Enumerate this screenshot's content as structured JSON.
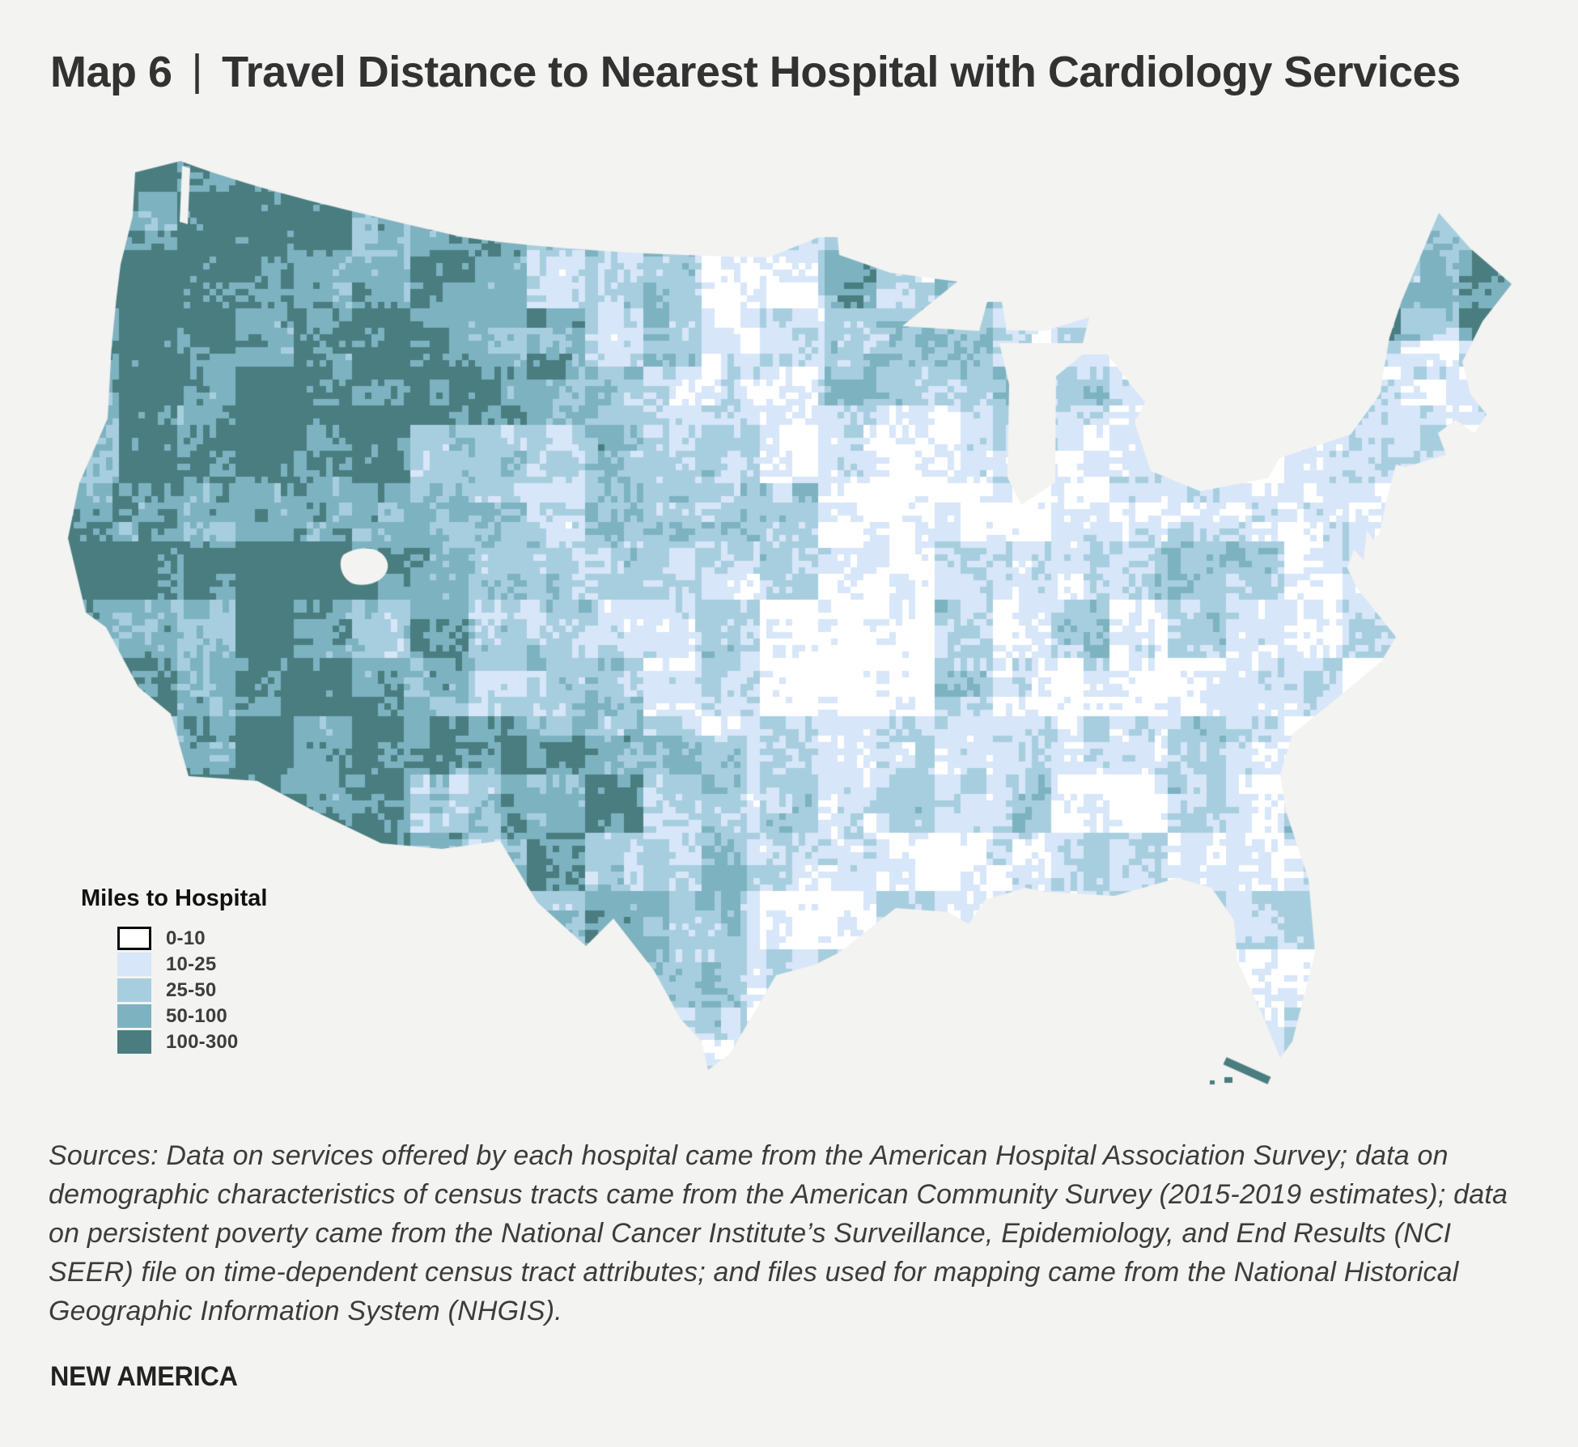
{
  "page": {
    "background": "#f3f3f1",
    "title_prefix": "Map 6",
    "title_separator": "|",
    "title_main": "Travel Distance to Nearest Hospital with Cardiology Services"
  },
  "legend": {
    "title": "Miles to Hospital",
    "items": [
      {
        "label": "0-10",
        "color": "#ffffff",
        "border": "#0a0a0a"
      },
      {
        "label": "10-25",
        "color": "#d7e6f8",
        "border": "none"
      },
      {
        "label": "25-50",
        "color": "#a7cedf",
        "border": "none"
      },
      {
        "label": "50-100",
        "color": "#7db2c0",
        "border": "none"
      },
      {
        "label": "100-300",
        "color": "#4a7d80",
        "border": "none"
      }
    ]
  },
  "source_note": "Sources: Data on services offered by each hospital came from the American Hospital Association Survey; data on demographic characteristics of census tracts came from the American Community Survey (2015-2019 estimates); data on persistent poverty came from the National Cancer Institute’s Surveillance, Epidemiology, and End Results (NCI SEER) file on time-dependent census tract attributes; and files used for mapping came from the National Historical Geographic Information System (NHGIS).",
  "brand": "NEW AMERICA",
  "chart_data": {
    "type": "heatmap",
    "subtype": "choropleth_map",
    "region": "Contiguous United States, census tracts",
    "title": "Map 6 | Travel Distance to Nearest Hospital with Cardiology Services",
    "variable": "Miles to Hospital",
    "classes": [
      {
        "range": "0-10",
        "color": "#ffffff"
      },
      {
        "range": "10-25",
        "color": "#d7e6f8"
      },
      {
        "range": "25-50",
        "color": "#a7cedf"
      },
      {
        "range": "50-100",
        "color": "#7db2c0"
      },
      {
        "range": "100-300",
        "color": "#4a7d80"
      }
    ],
    "legend_position": "bottom-left",
    "pattern": "Longest travel distances (100-300 miles, dark teal) cover the Mountain West, Great Basin, west Texas, northern Minnesota/Wisconsin and interior Maine; shortest distances (0-25 miles, white and pale blue) dominate the eastern half of the country and Pacific coast metropolitan areas."
  }
}
